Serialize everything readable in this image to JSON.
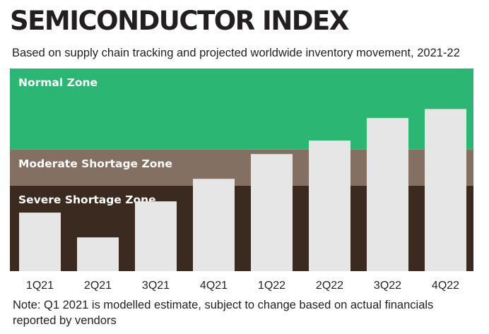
{
  "title": "SEMICONDUCTOR INDEX",
  "subtitle": "Based on supply chain tracking and projected worldwide inventory movement, 2021-22",
  "note": "Note: Q1 2021 is modelled estimate, subject to change based on actual financials reported by vendors",
  "colors": {
    "normal_zone": "#2bb673",
    "moderate_zone": "#847062",
    "severe_zone": "#3b2a20",
    "bar": "#e6e6e6",
    "zone_label": "#ffffff",
    "text": "#231f20"
  },
  "chart_data": {
    "type": "bar",
    "categories": [
      "1Q21",
      "2Q21",
      "3Q21",
      "4Q21",
      "1Q22",
      "2Q22",
      "3Q22",
      "4Q22"
    ],
    "values": [
      26,
      15,
      31,
      41,
      52,
      58,
      68,
      72
    ],
    "ylim": [
      0,
      90
    ],
    "zones": [
      {
        "label": "Severe Shortage Zone",
        "from": 0,
        "to": 38
      },
      {
        "label": "Moderate Shortage Zone",
        "from": 38,
        "to": 54
      },
      {
        "label": "Normal Zone",
        "from": 54,
        "to": 90
      }
    ],
    "grid": false,
    "legend": "none"
  }
}
